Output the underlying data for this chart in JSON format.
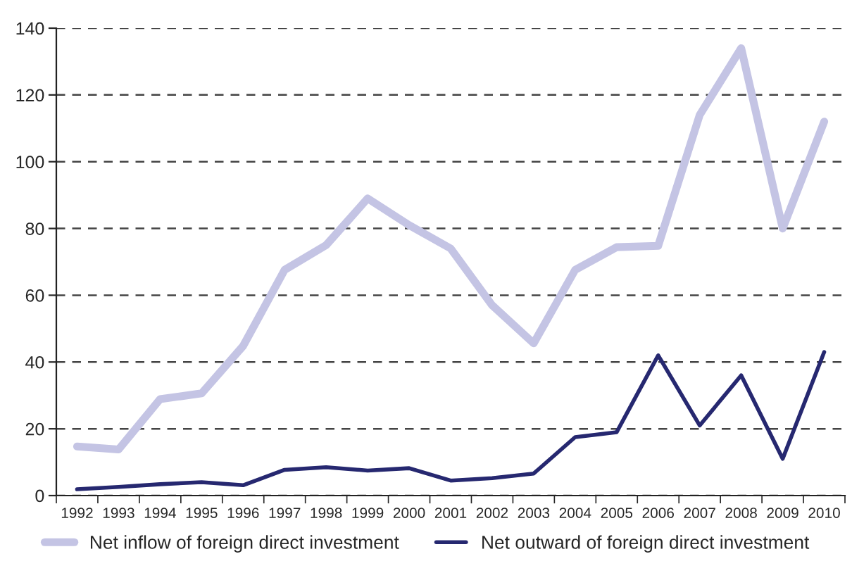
{
  "chart_data": {
    "type": "line",
    "categories": [
      "1992",
      "1993",
      "1994",
      "1995",
      "1996",
      "1997",
      "1998",
      "1999",
      "2000",
      "2001",
      "2002",
      "2003",
      "2004",
      "2005",
      "2006",
      "2007",
      "2008",
      "2009",
      "2010"
    ],
    "series": [
      {
        "name": "Net inflow of foreign direct investment",
        "color": "#c4c4e4",
        "values": [
          14.7,
          13.8,
          28.9,
          30.6,
          44.8,
          67.6,
          75,
          89,
          81,
          74,
          57,
          45.6,
          67.6,
          74.4,
          74.8,
          114,
          134,
          80,
          112
        ]
      },
      {
        "name": "Net outward of foreign direct investment",
        "color": "#262870",
        "values": [
          1.9,
          2.6,
          3.4,
          4,
          3.1,
          7.7,
          8.5,
          7.5,
          8.2,
          4.5,
          5.2,
          6.6,
          17.5,
          19,
          42,
          21,
          36,
          11,
          43
        ]
      }
    ],
    "ylim": [
      0,
      140
    ],
    "yticks": [
      0,
      20,
      40,
      60,
      80,
      100,
      120,
      140
    ],
    "grid": "y",
    "legend": "bottom",
    "marker": "none",
    "line_style": "solid"
  }
}
